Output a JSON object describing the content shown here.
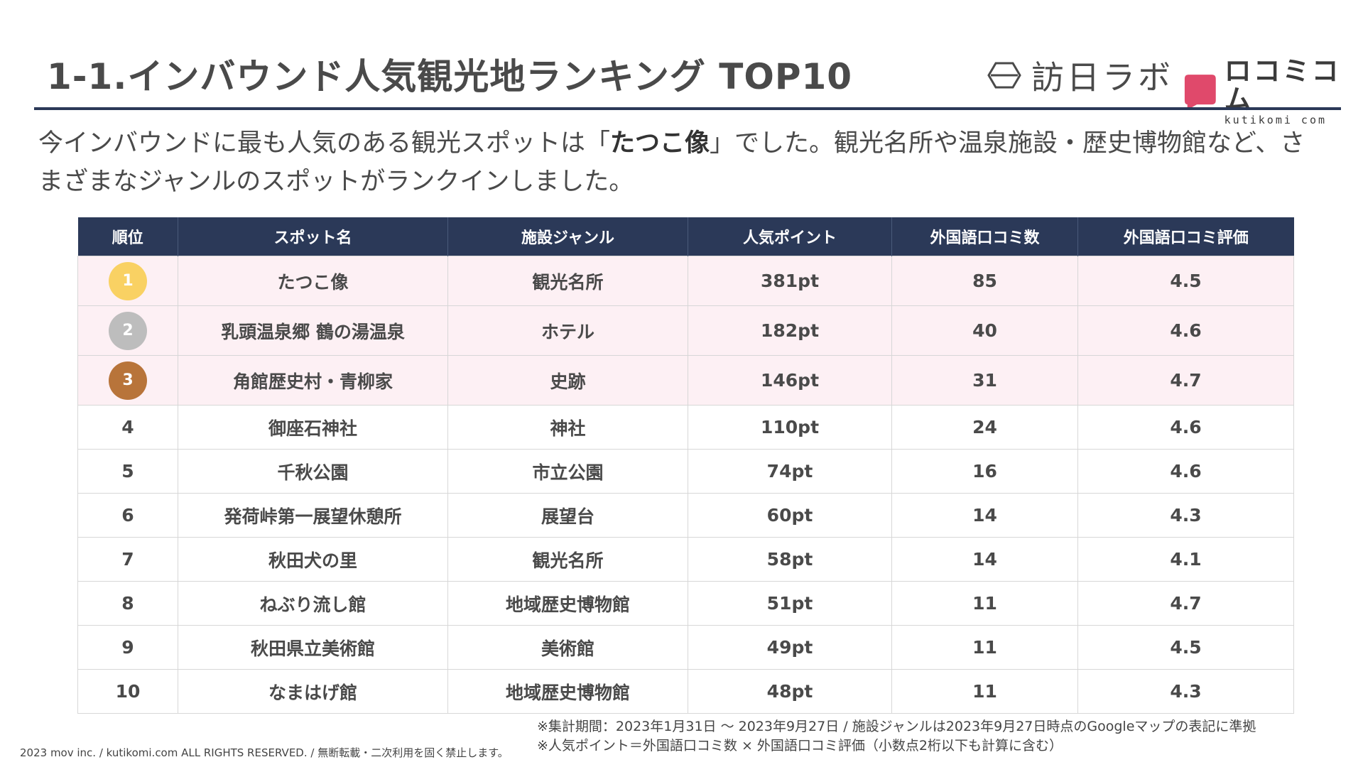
{
  "title": "1-1.インバウンド人気観光地ランキング TOP10",
  "logos": {
    "houjin_labo": "訪日ラボ",
    "kutikomi_main": "ロコミコム",
    "kutikomi_sub": "kutikomi com",
    "colors": {
      "kutikomi_mark": "#e0496b",
      "logo_text": "#3b3b3b"
    }
  },
  "summary": {
    "before": "今インバウンドに最も人気のある観光スポットは「",
    "highlight": "たつこ像",
    "after": "」でした。観光名所や温泉施設・歴史博物館など、さまざまなジャンルのスポットがランクインしました。"
  },
  "table": {
    "headers": [
      "順位",
      "スポット名",
      "施設ジャンル",
      "人気ポイント",
      "外国語口コミ数",
      "外国語口コミ評価"
    ],
    "rows": [
      {
        "rank": "1",
        "name": "たつこ像",
        "genre": "観光名所",
        "points": "381pt",
        "reviews": "85",
        "rating": "4.5"
      },
      {
        "rank": "2",
        "name": "乳頭温泉郷 鶴の湯温泉",
        "genre": "ホテル",
        "points": "182pt",
        "reviews": "40",
        "rating": "4.6"
      },
      {
        "rank": "3",
        "name": "角館歴史村・青柳家",
        "genre": "史跡",
        "points": "146pt",
        "reviews": "31",
        "rating": "4.7"
      },
      {
        "rank": "4",
        "name": "御座石神社",
        "genre": "神社",
        "points": "110pt",
        "reviews": "24",
        "rating": "4.6"
      },
      {
        "rank": "5",
        "name": "千秋公園",
        "genre": "市立公園",
        "points": "74pt",
        "reviews": "16",
        "rating": "4.6"
      },
      {
        "rank": "6",
        "name": "発荷峠第一展望休憩所",
        "genre": "展望台",
        "points": "60pt",
        "reviews": "14",
        "rating": "4.3"
      },
      {
        "rank": "7",
        "name": "秋田犬の里",
        "genre": "観光名所",
        "points": "58pt",
        "reviews": "14",
        "rating": "4.1"
      },
      {
        "rank": "8",
        "name": "ねぶり流し館",
        "genre": "地域歴史博物館",
        "points": "51pt",
        "reviews": "11",
        "rating": "4.7"
      },
      {
        "rank": "9",
        "name": "秋田県立美術館",
        "genre": "美術館",
        "points": "49pt",
        "reviews": "11",
        "rating": "4.5"
      },
      {
        "rank": "10",
        "name": "なまはげ館",
        "genre": "地域歴史博物館",
        "points": "48pt",
        "reviews": "11",
        "rating": "4.3"
      }
    ],
    "colors": {
      "header_bg": "#2b3958",
      "top3_row_bg": "#fdf0f4",
      "medal_gold": "#f9d163",
      "medal_silver": "#bdbdbd",
      "medal_bronze": "#b8743a"
    }
  },
  "footer": {
    "copyright": "2023 mov inc. / kutikomi.com ALL RIGHTS RESERVED. / 無断転載・二次利用を固く禁止します。",
    "note1": "※集計期間：2023年1月31日 〜 2023年9月27日 / 施設ジャンルは2023年9月27日時点のGoogleマップの表記に準拠",
    "note2": "※人気ポイント＝外国語口コミ数 × 外国語口コミ評価（小数点2桁以下も計算に含む）"
  }
}
